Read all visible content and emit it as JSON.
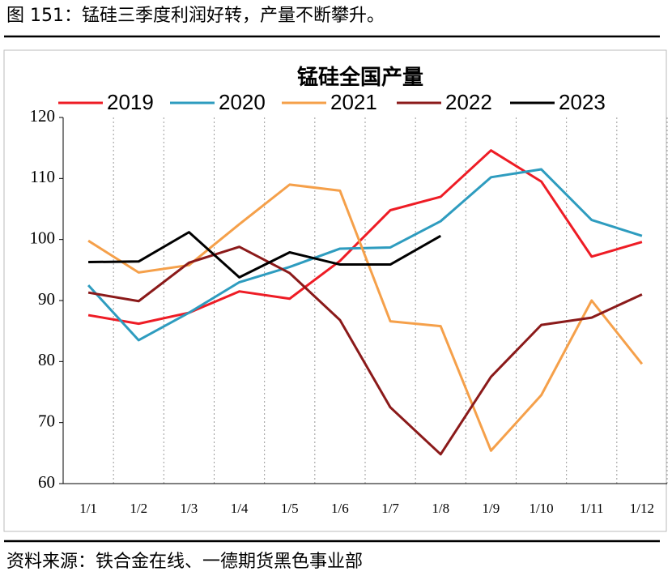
{
  "caption": "图 151：锰硅三季度利润好转，产量不断攀升。",
  "source": "资料来源：铁合金在线、一德期货黑色事业部",
  "chart_data": {
    "type": "line",
    "title": "锰硅全国产量",
    "categories": [
      "1/1",
      "1/2",
      "1/3",
      "1/4",
      "1/5",
      "1/6",
      "1/7",
      "1/8",
      "1/9",
      "1/10",
      "1/11",
      "1/12"
    ],
    "series": [
      {
        "name": "2019",
        "color": "#ee1c25",
        "values": [
          87.6,
          86.2,
          88,
          91.5,
          90.3,
          96.5,
          104.8,
          107,
          114.6,
          109.5,
          97.2,
          99.6
        ]
      },
      {
        "name": "2020",
        "color": "#2e9cbf",
        "values": [
          92.5,
          83.5,
          88,
          93,
          95.5,
          98.5,
          98.7,
          103,
          110.2,
          111.5,
          103.2,
          100.6
        ]
      },
      {
        "name": "2021",
        "color": "#f5a04a",
        "values": [
          99.8,
          94.6,
          95.8,
          102.5,
          109,
          108,
          86.6,
          85.8,
          65.4,
          74.5,
          90,
          79.6
        ]
      },
      {
        "name": "2022",
        "color": "#8b1a1a",
        "values": [
          91.3,
          89.9,
          96.2,
          98.8,
          94.5,
          86.8,
          72.5,
          64.8,
          77.5,
          86,
          87.2,
          91
        ]
      },
      {
        "name": "2023",
        "color": "#000000",
        "values": [
          96.3,
          96.4,
          101.2,
          93.8,
          97.9,
          95.9,
          95.9,
          100.6,
          null,
          null,
          null,
          null
        ]
      }
    ],
    "ylim": [
      60,
      120
    ],
    "yticks": [
      60,
      70,
      80,
      90,
      100,
      110,
      120
    ],
    "legend": "top"
  }
}
